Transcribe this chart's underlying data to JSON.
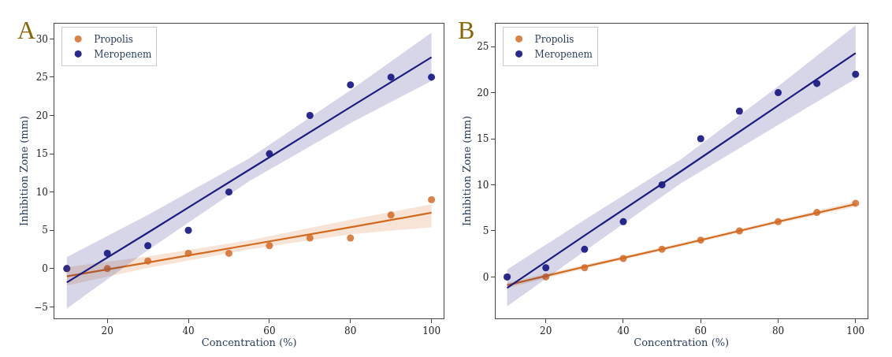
{
  "chart_data": [
    {
      "type": "scatter",
      "xlabel": "Concentration (%)",
      "ylabel": "Inhibition Zone (mm)",
      "annotations": [
        "A"
      ],
      "xlim": [
        7,
        103
      ],
      "xticks": [
        20,
        40,
        60,
        80,
        100
      ],
      "ylim": [
        -6.5,
        32
      ],
      "yticks": [
        -5,
        0,
        5,
        10,
        15,
        20,
        25,
        30
      ],
      "legend": "top left",
      "series": [
        {
          "name": "Propolis",
          "color": "#d9824a",
          "marker": "circle",
          "x": [
            10,
            20,
            30,
            40,
            50,
            60,
            70,
            80,
            90,
            100
          ],
          "values": [
            0,
            0,
            1,
            2,
            2,
            3,
            4,
            4,
            7,
            9
          ]
        },
        {
          "name": "Meropenem",
          "color": "#2a2a8c",
          "marker": "circle",
          "x": [
            10,
            20,
            30,
            40,
            50,
            60,
            70,
            80,
            90,
            100
          ],
          "values": [
            0,
            2,
            3,
            5,
            10,
            15,
            20,
            24,
            25,
            25
          ]
        },
        {
          "type": "line",
          "marker": "none",
          "color": "#d2691e",
          "x": [
            10,
            30,
            55,
            80,
            100
          ],
          "values": [
            -1.0,
            0.8,
            3.1,
            5.4,
            7.3
          ],
          "lower": [
            -2.2,
            0.1,
            2.5,
            4.5,
            5.4
          ],
          "upper": [
            0.2,
            1.6,
            3.7,
            6.4,
            8.4
          ]
        },
        {
          "type": "line",
          "marker": "none",
          "color": "#1c1c80",
          "x": [
            10,
            30,
            55,
            80,
            100
          ],
          "values": [
            -1.8,
            4.7,
            12.9,
            21.1,
            27.6
          ],
          "lower": [
            -5.2,
            2.4,
            11.4,
            19.0,
            24.5
          ],
          "upper": [
            1.5,
            7.0,
            14.4,
            23.3,
            30.8
          ]
        }
      ]
    },
    {
      "type": "scatter",
      "xlabel": "Concentration (%)",
      "ylabel": "Inhibition Zone (mm)",
      "annotations": [
        "B"
      ],
      "xlim": [
        7,
        103
      ],
      "xticks": [
        20,
        40,
        60,
        80,
        100
      ],
      "ylim": [
        -4.5,
        27.5
      ],
      "yticks": [
        0,
        5,
        10,
        15,
        20,
        25
      ],
      "legend": "top left",
      "series": [
        {
          "name": "Propolis",
          "color": "#d9824a",
          "marker": "circle",
          "x": [
            10,
            20,
            30,
            40,
            50,
            60,
            70,
            80,
            90,
            100
          ],
          "values": [
            0,
            0,
            1,
            2,
            3,
            4,
            5,
            6,
            7,
            8
          ]
        },
        {
          "name": "Meropenem",
          "color": "#2a2a8c",
          "marker": "circle",
          "x": [
            10,
            20,
            30,
            40,
            50,
            60,
            70,
            80,
            90,
            100
          ],
          "values": [
            0,
            1,
            3,
            6,
            10,
            15,
            18,
            20,
            21,
            22
          ]
        },
        {
          "type": "line",
          "marker": "none",
          "color": "#d2691e",
          "x": [
            10,
            30,
            55,
            80,
            100
          ],
          "values": [
            -0.9,
            1.1,
            3.5,
            6.0,
            7.9
          ],
          "lower": [
            -1.2,
            0.9,
            3.3,
            5.8,
            7.6
          ],
          "upper": [
            -0.6,
            1.3,
            3.7,
            6.2,
            8.2
          ]
        },
        {
          "type": "line",
          "marker": "none",
          "color": "#1c1c80",
          "x": [
            10,
            30,
            55,
            80,
            100
          ],
          "values": [
            -1.2,
            4.5,
            11.5,
            18.6,
            24.3
          ],
          "lower": [
            -3.2,
            2.8,
            10.2,
            16.5,
            21.5
          ],
          "upper": [
            0.8,
            6.2,
            12.8,
            20.7,
            27.3
          ]
        }
      ]
    }
  ]
}
